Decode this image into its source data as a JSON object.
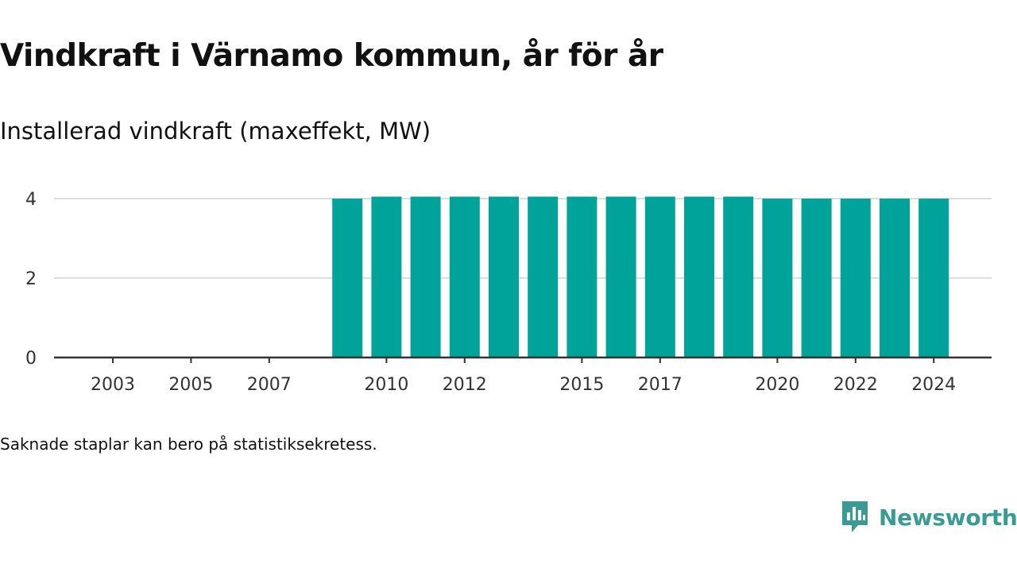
{
  "header": {
    "title": "Vindkraft i Värnamo kommun, år för år",
    "subtitle": "Installerad vindkraft (maxeffekt, MW)"
  },
  "footer": {
    "note": "Saknade staplar kan bero på statistiksekretess.",
    "brand": "Newsworthy"
  },
  "colors": {
    "bar": "#00a39a",
    "grid": "#dddddd",
    "axis": "#333333",
    "brand": "#3a9a94"
  },
  "chart_data": {
    "type": "bar",
    "title": "Vindkraft i Värnamo kommun, år för år",
    "subtitle": "Installerad vindkraft (maxeffekt, MW)",
    "xlabel": "",
    "ylabel": "",
    "categories": [
      "2003",
      "2004",
      "2005",
      "2006",
      "2007",
      "2008",
      "2009",
      "2010",
      "2011",
      "2012",
      "2013",
      "2014",
      "2015",
      "2016",
      "2017",
      "2018",
      "2019",
      "2020",
      "2021",
      "2022",
      "2023",
      "2024"
    ],
    "values": [
      0,
      0,
      0,
      0,
      0,
      0,
      4.0,
      4.05,
      4.05,
      4.05,
      4.05,
      4.05,
      4.05,
      4.05,
      4.05,
      4.05,
      4.05,
      4.0,
      4.0,
      4.0,
      4.0,
      4.0
    ],
    "x_tick_labels": [
      "2003",
      "2005",
      "2007",
      "2010",
      "2012",
      "2015",
      "2017",
      "2020",
      "2022",
      "2024"
    ],
    "y_ticks": [
      0,
      2,
      4
    ],
    "ylim": [
      0,
      4.05
    ],
    "grid": true,
    "legend": "none"
  }
}
